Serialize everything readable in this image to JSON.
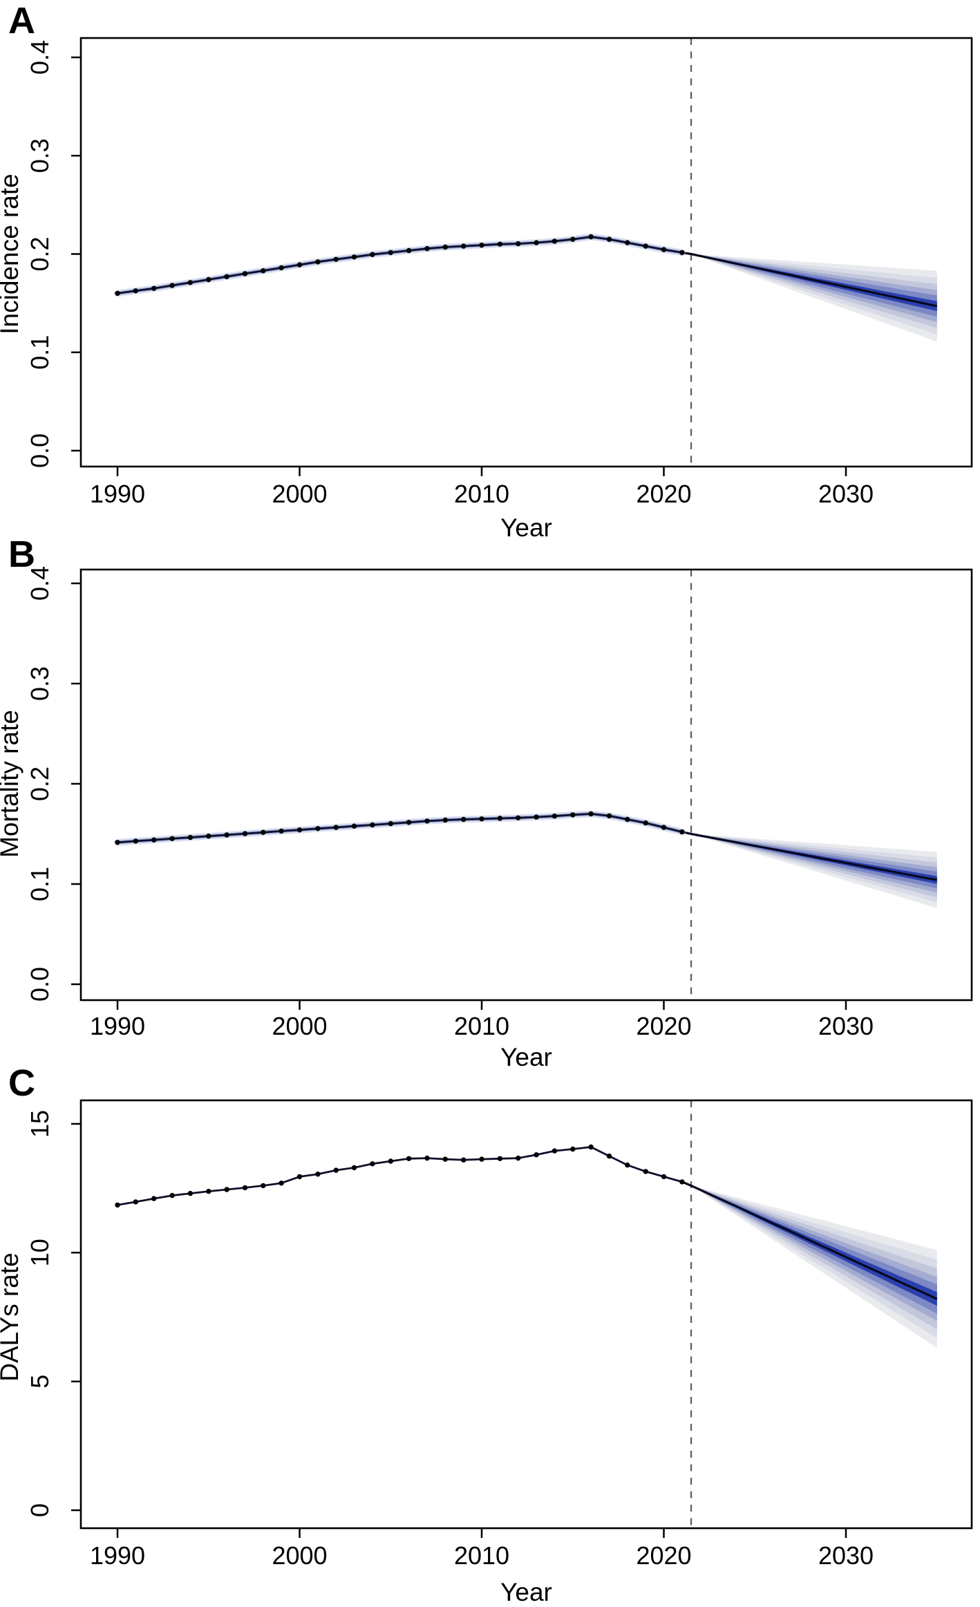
{
  "figure": {
    "background": "#ffffff",
    "panels_order": [
      "A",
      "B",
      "C"
    ]
  },
  "colors": {
    "axis": "#000000",
    "observed_line": "#0c102c",
    "data_point": "#000000",
    "projection_center_line": "#06091f",
    "forecast_dashed_line": "#5f5f5f",
    "observed_halo_outer": "rgba(190,197,226,0.50)",
    "observed_halo_inner": "rgba(80,100,185,0.45)",
    "fan_band_colors": [
      "#e9eaee",
      "#d9dce7",
      "#c2c7db",
      "#a3abd1",
      "#7d89c5",
      "#2c40ae"
    ]
  },
  "chart_data": [
    {
      "type": "line",
      "panel_label": "A",
      "xlabel": "Year",
      "ylabel": "Incidence rate",
      "x_ticks": [
        1990,
        2000,
        2010,
        2020,
        2030
      ],
      "x_tick_labels": [
        "1990",
        "2000",
        "2010",
        "2020",
        "2030"
      ],
      "y_ticks": [
        0.0,
        0.1,
        0.2,
        0.3,
        0.4
      ],
      "y_tick_labels": [
        "0.0",
        "0.1",
        "0.2",
        "0.3",
        "0.4"
      ],
      "xlim": [
        1988,
        2037
      ],
      "ylim": [
        0.0,
        0.4
      ],
      "grid": false,
      "legend": "none",
      "forecast_start": 2021.5,
      "has_observed_band": true,
      "observed": {
        "years": [
          1990,
          1991,
          1992,
          1993,
          1994,
          1995,
          1996,
          1997,
          1998,
          1999,
          2000,
          2001,
          2002,
          2003,
          2004,
          2005,
          2006,
          2007,
          2008,
          2009,
          2010,
          2011,
          2012,
          2013,
          2014,
          2015,
          2016,
          2017,
          2018,
          2019,
          2020,
          2021
        ],
        "values": [
          0.16,
          0.1625,
          0.165,
          0.168,
          0.171,
          0.174,
          0.177,
          0.18,
          0.183,
          0.186,
          0.189,
          0.192,
          0.1945,
          0.197,
          0.1995,
          0.2015,
          0.2035,
          0.2055,
          0.207,
          0.208,
          0.209,
          0.21,
          0.2105,
          0.2115,
          0.213,
          0.215,
          0.2175,
          0.215,
          0.2115,
          0.208,
          0.2045,
          0.2015
        ]
      },
      "projection": {
        "years": [
          2021.5,
          2022,
          2023,
          2024,
          2025,
          2026,
          2027,
          2028,
          2029,
          2030,
          2031,
          2032,
          2033,
          2034,
          2035
        ],
        "center": [
          0.2,
          0.198,
          0.1941,
          0.1901,
          0.1862,
          0.1823,
          0.1784,
          0.1744,
          0.1705,
          0.1666,
          0.1627,
          0.1587,
          0.1548,
          0.1509,
          0.147
        ],
        "outer_halfwidth_at_end": 0.036,
        "band_fractions": [
          1.0,
          0.8,
          0.62,
          0.45,
          0.3,
          0.14
        ]
      }
    },
    {
      "type": "line",
      "panel_label": "B",
      "xlabel": "Year",
      "ylabel": "Mortality rate",
      "x_ticks": [
        1990,
        2000,
        2010,
        2020,
        2030
      ],
      "x_tick_labels": [
        "1990",
        "2000",
        "2010",
        "2020",
        "2030"
      ],
      "y_ticks": [
        0.0,
        0.1,
        0.2,
        0.3,
        0.4
      ],
      "y_tick_labels": [
        "0.0",
        "0.1",
        "0.2",
        "0.3",
        "0.4"
      ],
      "xlim": [
        1988,
        2037
      ],
      "ylim": [
        0.0,
        0.4
      ],
      "grid": false,
      "legend": "none",
      "forecast_start": 2021.5,
      "has_observed_band": true,
      "observed": {
        "years": [
          1990,
          1991,
          1992,
          1993,
          1994,
          1995,
          1996,
          1997,
          1998,
          1999,
          2000,
          2001,
          2002,
          2003,
          2004,
          2005,
          2006,
          2007,
          2008,
          2009,
          2010,
          2011,
          2012,
          2013,
          2014,
          2015,
          2016,
          2017,
          2018,
          2019,
          2020,
          2021
        ],
        "values": [
          0.1415,
          0.1428,
          0.144,
          0.1453,
          0.1465,
          0.1478,
          0.149,
          0.1503,
          0.1515,
          0.1528,
          0.154,
          0.1553,
          0.1565,
          0.1578,
          0.159,
          0.1603,
          0.1615,
          0.1628,
          0.1638,
          0.1645,
          0.165,
          0.1655,
          0.166,
          0.1668,
          0.1678,
          0.169,
          0.17,
          0.168,
          0.1645,
          0.161,
          0.1565,
          0.152
        ]
      },
      "projection": {
        "years": [
          2021.5,
          2022,
          2023,
          2024,
          2025,
          2026,
          2027,
          2028,
          2029,
          2030,
          2031,
          2032,
          2033,
          2034,
          2035
        ],
        "center": [
          0.15,
          0.1483,
          0.1449,
          0.1415,
          0.1381,
          0.1347,
          0.1313,
          0.1279,
          0.1245,
          0.1211,
          0.1176,
          0.1142,
          0.1108,
          0.1074,
          0.104
        ],
        "outer_halfwidth_at_end": 0.028,
        "band_fractions": [
          1.0,
          0.8,
          0.62,
          0.45,
          0.3,
          0.14
        ]
      }
    },
    {
      "type": "line",
      "panel_label": "C",
      "xlabel": "Year",
      "ylabel": "DALYs rate",
      "x_ticks": [
        1990,
        2000,
        2010,
        2020,
        2030
      ],
      "x_tick_labels": [
        "1990",
        "2000",
        "2010",
        "2020",
        "2030"
      ],
      "y_ticks": [
        0,
        5,
        10,
        15
      ],
      "y_tick_labels": [
        "0",
        "5",
        "10",
        "15"
      ],
      "xlim": [
        1988,
        2037
      ],
      "ylim": [
        0,
        15
      ],
      "grid": false,
      "legend": "none",
      "forecast_start": 2021.5,
      "has_observed_band": false,
      "observed": {
        "years": [
          1990,
          1991,
          1992,
          1993,
          1994,
          1995,
          1996,
          1997,
          1998,
          1999,
          2000,
          2001,
          2002,
          2003,
          2004,
          2005,
          2006,
          2007,
          2008,
          2009,
          2010,
          2011,
          2012,
          2013,
          2014,
          2015,
          2016,
          2017,
          2018,
          2019,
          2020,
          2021
        ],
        "values": [
          11.85,
          11.97,
          12.1,
          12.22,
          12.3,
          12.38,
          12.45,
          12.52,
          12.6,
          12.7,
          12.95,
          13.05,
          13.2,
          13.3,
          13.45,
          13.55,
          13.65,
          13.67,
          13.63,
          13.6,
          13.63,
          13.65,
          13.67,
          13.8,
          13.95,
          14.02,
          14.1,
          13.75,
          13.4,
          13.15,
          12.95,
          12.75
        ]
      },
      "projection": {
        "years": [
          2021.5,
          2022,
          2023,
          2024,
          2025,
          2026,
          2027,
          2028,
          2029,
          2030,
          2031,
          2032,
          2033,
          2034,
          2035
        ],
        "center": [
          12.6,
          12.44,
          12.11,
          11.79,
          11.46,
          11.13,
          10.81,
          10.48,
          10.16,
          9.83,
          9.5,
          9.18,
          8.85,
          8.53,
          8.2
        ],
        "outer_halfwidth_at_end": 1.9,
        "band_fractions": [
          1.0,
          0.8,
          0.62,
          0.45,
          0.3,
          0.14
        ]
      }
    }
  ]
}
